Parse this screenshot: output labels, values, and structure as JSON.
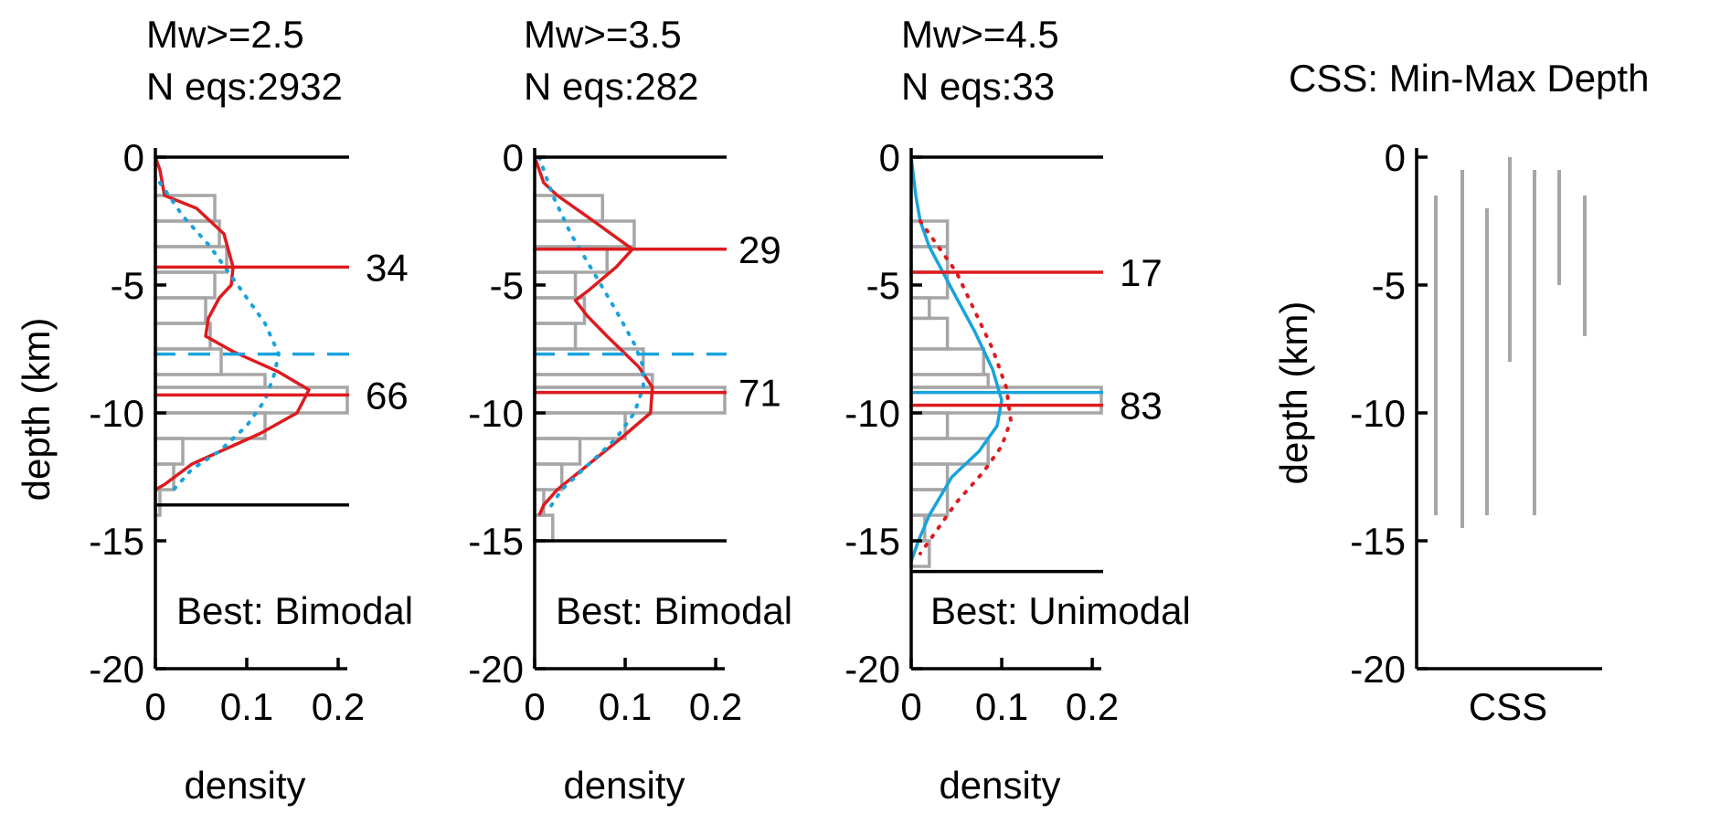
{
  "figure": {
    "ylabel": "depth (km)",
    "xlabel": "density",
    "y_ticks": [
      "0",
      "-5",
      "-10",
      "-15",
      "-20"
    ],
    "x_ticks": [
      "0",
      "0.1",
      "0.2"
    ]
  },
  "colors": {
    "red": "#dd1b1f",
    "blue": "#19a3dc",
    "gray": "#a6a6a6",
    "black": "#000000"
  },
  "chart_data": [
    {
      "type": "bar",
      "orientation": "horizontal-histogram",
      "title_line1": "Mw>=2.5",
      "title_line2": "N eqs:2932",
      "xlabel": "density",
      "ylabel": "depth (km)",
      "xlim": [
        0,
        0.21
      ],
      "ylim": [
        -20,
        0
      ],
      "histogram": [
        {
          "depth_top": -1.5,
          "depth_bottom": -2.5,
          "density": 0.065
        },
        {
          "depth_top": -2.5,
          "depth_bottom": -3.5,
          "density": 0.07
        },
        {
          "depth_top": -3.5,
          "depth_bottom": -4.5,
          "density": 0.078
        },
        {
          "depth_top": -4.5,
          "depth_bottom": -5.5,
          "density": 0.065
        },
        {
          "depth_top": -5.5,
          "depth_bottom": -6.5,
          "density": 0.055
        },
        {
          "depth_top": -6.5,
          "depth_bottom": -7.5,
          "density": 0.06
        },
        {
          "depth_top": -7.5,
          "depth_bottom": -8.5,
          "density": 0.072
        },
        {
          "depth_top": -8.5,
          "depth_bottom": -9.0,
          "density": 0.12
        },
        {
          "depth_top": -9.0,
          "depth_bottom": -10.0,
          "density": 0.21
        },
        {
          "depth_top": -10.0,
          "depth_bottom": -11.0,
          "density": 0.12
        },
        {
          "depth_top": -11.0,
          "depth_bottom": -12.0,
          "density": 0.03
        },
        {
          "depth_top": -12.0,
          "depth_bottom": -13.0,
          "density": 0.02
        },
        {
          "depth_top": -13.0,
          "depth_bottom": -14.0,
          "density": 0.005
        }
      ],
      "series": [
        {
          "style": "solid",
          "color": "red",
          "points": [
            [
              0,
              0
            ],
            [
              0.005,
              -0.5
            ],
            [
              0.01,
              -1.5
            ],
            [
              0.045,
              -2
            ],
            [
              0.075,
              -3
            ],
            [
              0.085,
              -4.3
            ],
            [
              0.083,
              -5
            ],
            [
              0.07,
              -5.5
            ],
            [
              0.058,
              -6.3
            ],
            [
              0.055,
              -7
            ],
            [
              0.085,
              -7.6
            ],
            [
              0.135,
              -8.4
            ],
            [
              0.168,
              -9.1
            ],
            [
              0.155,
              -10
            ],
            [
              0.115,
              -10.8
            ],
            [
              0.04,
              -12
            ],
            [
              0.01,
              -12.8
            ],
            [
              0,
              -13
            ]
          ]
        },
        {
          "style": "dotted",
          "color": "blue",
          "points": [
            [
              0.005,
              -1
            ],
            [
              0.03,
              -2.3
            ],
            [
              0.06,
              -3.5
            ],
            [
              0.09,
              -5
            ],
            [
              0.12,
              -6.5
            ],
            [
              0.135,
              -7.7
            ],
            [
              0.13,
              -8.5
            ],
            [
              0.12,
              -9.5
            ],
            [
              0.1,
              -10.5
            ],
            [
              0.07,
              -11.5
            ],
            [
              0.04,
              -12.2
            ],
            [
              0.02,
              -13
            ]
          ]
        }
      ],
      "reference_lines": [
        {
          "depth": -4.3,
          "color": "red",
          "style": "solid",
          "label": "34"
        },
        {
          "depth": -9.3,
          "color": "red",
          "style": "solid",
          "label": "66"
        },
        {
          "depth": -7.7,
          "color": "blue",
          "style": "dashed",
          "label": ""
        }
      ],
      "depth_range_lines": [
        0,
        -13.6
      ],
      "annotation": "Best: Bimodal"
    },
    {
      "type": "bar",
      "orientation": "horizontal-histogram",
      "title_line1": "Mw>=3.5",
      "title_line2": "N eqs:282",
      "xlabel": "density",
      "ylabel": "depth (km)",
      "xlim": [
        0,
        0.21
      ],
      "ylim": [
        -20,
        0
      ],
      "histogram": [
        {
          "depth_top": -1.5,
          "depth_bottom": -2.5,
          "density": 0.075
        },
        {
          "depth_top": -2.5,
          "depth_bottom": -3.5,
          "density": 0.11
        },
        {
          "depth_top": -3.5,
          "depth_bottom": -4.5,
          "density": 0.08
        },
        {
          "depth_top": -4.5,
          "depth_bottom": -5.5,
          "density": 0.045
        },
        {
          "depth_top": -5.5,
          "depth_bottom": -6.5,
          "density": 0.055
        },
        {
          "depth_top": -6.5,
          "depth_bottom": -7.5,
          "density": 0.045
        },
        {
          "depth_top": -7.5,
          "depth_bottom": -8.5,
          "density": 0.12
        },
        {
          "depth_top": -8.5,
          "depth_bottom": -9.0,
          "density": 0.13
        },
        {
          "depth_top": -9.0,
          "depth_bottom": -10.0,
          "density": 0.21
        },
        {
          "depth_top": -10.0,
          "depth_bottom": -11.0,
          "density": 0.1
        },
        {
          "depth_top": -11.0,
          "depth_bottom": -12.0,
          "density": 0.05
        },
        {
          "depth_top": -12.0,
          "depth_bottom": -13.0,
          "density": 0.03
        },
        {
          "depth_top": -13.0,
          "depth_bottom": -14.0,
          "density": 0.01
        },
        {
          "depth_top": -14.0,
          "depth_bottom": -15.0,
          "density": 0.02
        }
      ],
      "series": [
        {
          "style": "solid",
          "color": "red",
          "points": [
            [
              0,
              0
            ],
            [
              0.005,
              -0.5
            ],
            [
              0.01,
              -1
            ],
            [
              0.025,
              -1.5
            ],
            [
              0.065,
              -2.5
            ],
            [
              0.108,
              -3.6
            ],
            [
              0.09,
              -4.3
            ],
            [
              0.06,
              -5.2
            ],
            [
              0.045,
              -5.6
            ],
            [
              0.058,
              -6.2
            ],
            [
              0.08,
              -7
            ],
            [
              0.115,
              -8.2
            ],
            [
              0.13,
              -9
            ],
            [
              0.128,
              -10
            ],
            [
              0.095,
              -11
            ],
            [
              0.06,
              -12
            ],
            [
              0.025,
              -13
            ],
            [
              0.01,
              -13.6
            ],
            [
              0.005,
              -14
            ]
          ]
        },
        {
          "style": "dotted",
          "color": "blue",
          "points": [
            [
              0.005,
              0
            ],
            [
              0.01,
              -0.5
            ],
            [
              0.02,
              -1.5
            ],
            [
              0.04,
              -3
            ],
            [
              0.065,
              -4.5
            ],
            [
              0.09,
              -6
            ],
            [
              0.11,
              -7.3
            ],
            [
              0.12,
              -8.2
            ],
            [
              0.12,
              -9
            ],
            [
              0.11,
              -10
            ],
            [
              0.09,
              -11
            ],
            [
              0.06,
              -12
            ],
            [
              0.03,
              -13
            ],
            [
              0.015,
              -13.8
            ]
          ]
        }
      ],
      "reference_lines": [
        {
          "depth": -3.6,
          "color": "red",
          "style": "solid",
          "label": "29"
        },
        {
          "depth": -9.2,
          "color": "red",
          "style": "solid",
          "label": "71"
        },
        {
          "depth": -7.7,
          "color": "blue",
          "style": "dashed",
          "label": ""
        }
      ],
      "depth_range_lines": [
        0,
        -15
      ],
      "annotation": "Best: Bimodal"
    },
    {
      "type": "bar",
      "orientation": "horizontal-histogram",
      "title_line1": "Mw>=4.5",
      "title_line2": "N eqs:33",
      "xlabel": "density",
      "ylabel": "depth (km)",
      "xlim": [
        0,
        0.21
      ],
      "ylim": [
        -20,
        0
      ],
      "histogram": [
        {
          "depth_top": -2.5,
          "depth_bottom": -3.5,
          "density": 0.04
        },
        {
          "depth_top": -3.5,
          "depth_bottom": -4.5,
          "density": 0.04
        },
        {
          "depth_top": -4.5,
          "depth_bottom": -5.5,
          "density": 0.04
        },
        {
          "depth_top": -5.5,
          "depth_bottom": -6.3,
          "density": 0.02
        },
        {
          "depth_top": -6.3,
          "depth_bottom": -7.5,
          "density": 0.04
        },
        {
          "depth_top": -7.5,
          "depth_bottom": -8.5,
          "density": 0.08
        },
        {
          "depth_top": -8.5,
          "depth_bottom": -9.0,
          "density": 0.085
        },
        {
          "depth_top": -9.0,
          "depth_bottom": -10.0,
          "density": 0.21
        },
        {
          "depth_top": -10.0,
          "depth_bottom": -11.0,
          "density": 0.04
        },
        {
          "depth_top": -11.0,
          "depth_bottom": -12.0,
          "density": 0.085
        },
        {
          "depth_top": -12.0,
          "depth_bottom": -13.0,
          "density": 0.04
        },
        {
          "depth_top": -13.0,
          "depth_bottom": -14.0,
          "density": 0.04
        },
        {
          "depth_top": -14.0,
          "depth_bottom": -15.0,
          "density": 0.015
        },
        {
          "depth_top": -15.0,
          "depth_bottom": -16.0,
          "density": 0.02
        }
      ],
      "series": [
        {
          "style": "solid",
          "color": "blue",
          "points": [
            [
              0,
              0
            ],
            [
              0.005,
              -1.5
            ],
            [
              0.01,
              -2.5
            ],
            [
              0.02,
              -3.5
            ],
            [
              0.035,
              -4.5
            ],
            [
              0.05,
              -5.5
            ],
            [
              0.07,
              -6.8
            ],
            [
              0.09,
              -8.3
            ],
            [
              0.1,
              -9.5
            ],
            [
              0.095,
              -10.5
            ],
            [
              0.075,
              -11.5
            ],
            [
              0.045,
              -12.5
            ],
            [
              0.02,
              -14
            ],
            [
              0.008,
              -15
            ],
            [
              0,
              -15.8
            ]
          ]
        },
        {
          "style": "dotted",
          "color": "red",
          "points": [
            [
              0.01,
              -2.5
            ],
            [
              0.03,
              -3.5
            ],
            [
              0.05,
              -4.5
            ],
            [
              0.07,
              -6
            ],
            [
              0.09,
              -7.5
            ],
            [
              0.105,
              -9
            ],
            [
              0.11,
              -10.3
            ],
            [
              0.1,
              -11.3
            ],
            [
              0.08,
              -12.3
            ],
            [
              0.05,
              -13.5
            ],
            [
              0.03,
              -14.5
            ],
            [
              0.01,
              -15.5
            ]
          ]
        }
      ],
      "reference_lines": [
        {
          "depth": -4.5,
          "color": "red",
          "style": "solid",
          "label": "17"
        },
        {
          "depth": -9.7,
          "color": "red",
          "style": "solid",
          "label": "83"
        },
        {
          "depth": -9.2,
          "color": "blue",
          "style": "solid",
          "label": ""
        }
      ],
      "depth_range_lines": [
        0,
        -16.2
      ],
      "annotation": "Best: Unimodal"
    },
    {
      "type": "bar",
      "title": "CSS: Min-Max Depth",
      "xlabel": "CSS",
      "ylabel": "depth (km)",
      "ylim": [
        -20,
        0
      ],
      "series": [
        {
          "name": "",
          "ranges": [
            [
              -1.5,
              -14
            ],
            [
              -0.5,
              -14.5
            ],
            [
              -2,
              -14
            ],
            [
              0,
              -8
            ],
            [
              -0.5,
              -14
            ],
            [
              -0.5,
              -5
            ],
            [
              -1.5,
              -7
            ]
          ]
        }
      ]
    }
  ]
}
